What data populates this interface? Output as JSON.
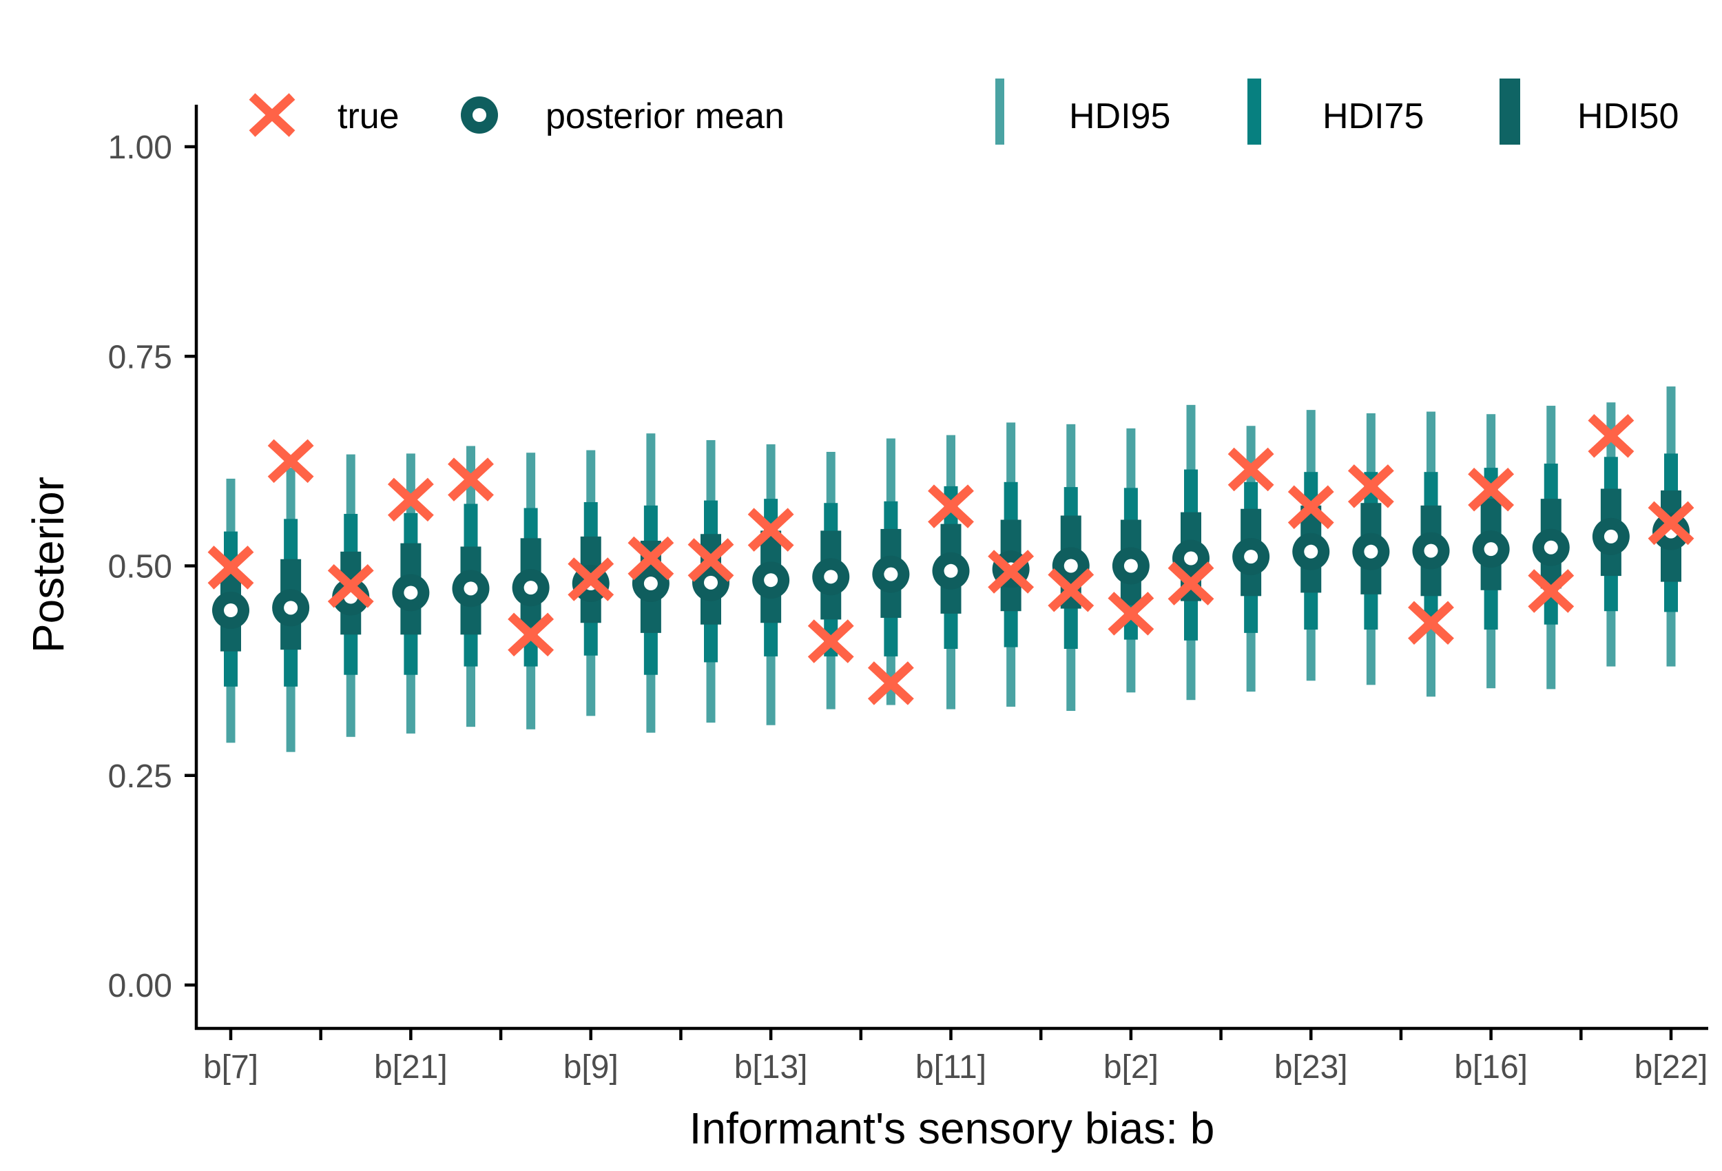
{
  "chart_data": {
    "type": "interval-dot",
    "xlabel": "Informant's sensory bias: b",
    "ylabel": "Posterior",
    "ylim": [
      0,
      1
    ],
    "yticks": [
      "0.00",
      "0.25",
      "0.50",
      "0.75",
      "1.00"
    ],
    "ytick_values": [
      0,
      0.25,
      0.5,
      0.75,
      1.0
    ],
    "categories_labeled": [
      "b[7]",
      "",
      "b[21]",
      "",
      "b[9]",
      "",
      "b[13]",
      "",
      "b[11]",
      "",
      "b[2]",
      "",
      "b[23]",
      "",
      "b[16]",
      "",
      "b[22]"
    ],
    "grid": false,
    "legend_position": "top",
    "legend": {
      "true_label": "true",
      "mean_label": "posterior mean",
      "hdi95_label": "HDI95",
      "hdi75_label": "HDI75",
      "hdi50_label": "HDI50"
    },
    "colors": {
      "true": "#ff6347",
      "mean": "#0f5e5e",
      "hdi95": "#4aa3a3",
      "hdi75": "#078080",
      "hdi50": "#0f6464",
      "axis": "#000000",
      "tick_text": "#4d4d4d"
    },
    "points": [
      {
        "mean": 0.447,
        "true": 0.498,
        "hdi95": [
          0.289,
          0.604
        ],
        "hdi75": [
          0.356,
          0.541
        ],
        "hdi50": [
          0.398,
          0.492
        ]
      },
      {
        "mean": 0.45,
        "true": 0.625,
        "hdi95": [
          0.278,
          0.617
        ],
        "hdi75": [
          0.356,
          0.556
        ],
        "hdi50": [
          0.4,
          0.508
        ]
      },
      {
        "mean": 0.463,
        "true": 0.476,
        "hdi95": [
          0.296,
          0.633
        ],
        "hdi75": [
          0.37,
          0.562
        ],
        "hdi50": [
          0.418,
          0.517
        ]
      },
      {
        "mean": 0.468,
        "true": 0.579,
        "hdi95": [
          0.3,
          0.634
        ],
        "hdi75": [
          0.37,
          0.563
        ],
        "hdi50": [
          0.418,
          0.527
        ]
      },
      {
        "mean": 0.473,
        "true": 0.603,
        "hdi95": [
          0.308,
          0.643
        ],
        "hdi75": [
          0.38,
          0.574
        ],
        "hdi50": [
          0.418,
          0.523
        ]
      },
      {
        "mean": 0.474,
        "true": 0.418,
        "hdi95": [
          0.305,
          0.635
        ],
        "hdi75": [
          0.38,
          0.569
        ],
        "hdi50": [
          0.427,
          0.533
        ]
      },
      {
        "mean": 0.479,
        "true": 0.484,
        "hdi95": [
          0.321,
          0.638
        ],
        "hdi75": [
          0.393,
          0.576
        ],
        "hdi50": [
          0.432,
          0.535
        ]
      },
      {
        "mean": 0.479,
        "true": 0.509,
        "hdi95": [
          0.301,
          0.658
        ],
        "hdi75": [
          0.37,
          0.572
        ],
        "hdi50": [
          0.42,
          0.53
        ]
      },
      {
        "mean": 0.48,
        "true": 0.507,
        "hdi95": [
          0.313,
          0.65
        ],
        "hdi75": [
          0.385,
          0.578
        ],
        "hdi50": [
          0.43,
          0.538
        ]
      },
      {
        "mean": 0.483,
        "true": 0.543,
        "hdi95": [
          0.31,
          0.645
        ],
        "hdi75": [
          0.392,
          0.58
        ],
        "hdi50": [
          0.432,
          0.542
        ]
      },
      {
        "mean": 0.487,
        "true": 0.41,
        "hdi95": [
          0.329,
          0.636
        ],
        "hdi75": [
          0.392,
          0.575
        ],
        "hdi50": [
          0.436,
          0.542
        ]
      },
      {
        "mean": 0.49,
        "true": 0.36,
        "hdi95": [
          0.334,
          0.652
        ],
        "hdi75": [
          0.392,
          0.577
        ],
        "hdi50": [
          0.438,
          0.544
        ]
      },
      {
        "mean": 0.494,
        "true": 0.571,
        "hdi95": [
          0.329,
          0.656
        ],
        "hdi75": [
          0.401,
          0.595
        ],
        "hdi50": [
          0.443,
          0.55
        ]
      },
      {
        "mean": 0.496,
        "true": 0.493,
        "hdi95": [
          0.332,
          0.671
        ],
        "hdi75": [
          0.403,
          0.6
        ],
        "hdi50": [
          0.446,
          0.555
        ]
      },
      {
        "mean": 0.5,
        "true": 0.471,
        "hdi95": [
          0.327,
          0.669
        ],
        "hdi75": [
          0.401,
          0.594
        ],
        "hdi50": [
          0.449,
          0.56
        ]
      },
      {
        "mean": 0.5,
        "true": 0.443,
        "hdi95": [
          0.349,
          0.664
        ],
        "hdi75": [
          0.412,
          0.593
        ],
        "hdi50": [
          0.453,
          0.555
        ]
      },
      {
        "mean": 0.509,
        "true": 0.479,
        "hdi95": [
          0.34,
          0.692
        ],
        "hdi75": [
          0.411,
          0.615
        ],
        "hdi50": [
          0.458,
          0.564
        ]
      },
      {
        "mean": 0.511,
        "true": 0.615,
        "hdi95": [
          0.35,
          0.667
        ],
        "hdi75": [
          0.42,
          0.6
        ],
        "hdi50": [
          0.464,
          0.568
        ]
      },
      {
        "mean": 0.517,
        "true": 0.57,
        "hdi95": [
          0.363,
          0.686
        ],
        "hdi75": [
          0.424,
          0.612
        ],
        "hdi50": [
          0.468,
          0.572
        ]
      },
      {
        "mean": 0.517,
        "true": 0.595,
        "hdi95": [
          0.358,
          0.682
        ],
        "hdi75": [
          0.424,
          0.612
        ],
        "hdi50": [
          0.466,
          0.575
        ]
      },
      {
        "mean": 0.518,
        "true": 0.432,
        "hdi95": [
          0.344,
          0.684
        ],
        "hdi75": [
          0.428,
          0.612
        ],
        "hdi50": [
          0.464,
          0.572
        ]
      },
      {
        "mean": 0.52,
        "true": 0.591,
        "hdi95": [
          0.354,
          0.681
        ],
        "hdi75": [
          0.424,
          0.617
        ],
        "hdi50": [
          0.471,
          0.58
        ]
      },
      {
        "mean": 0.522,
        "true": 0.47,
        "hdi95": [
          0.353,
          0.691
        ],
        "hdi75": [
          0.43,
          0.622
        ],
        "hdi50": [
          0.473,
          0.58
        ]
      },
      {
        "mean": 0.535,
        "true": 0.655,
        "hdi95": [
          0.38,
          0.695
        ],
        "hdi75": [
          0.446,
          0.63
        ],
        "hdi50": [
          0.488,
          0.592
        ]
      },
      {
        "mean": 0.541,
        "true": 0.551,
        "hdi95": [
          0.38,
          0.714
        ],
        "hdi75": [
          0.445,
          0.634
        ],
        "hdi50": [
          0.481,
          0.59
        ]
      }
    ]
  }
}
